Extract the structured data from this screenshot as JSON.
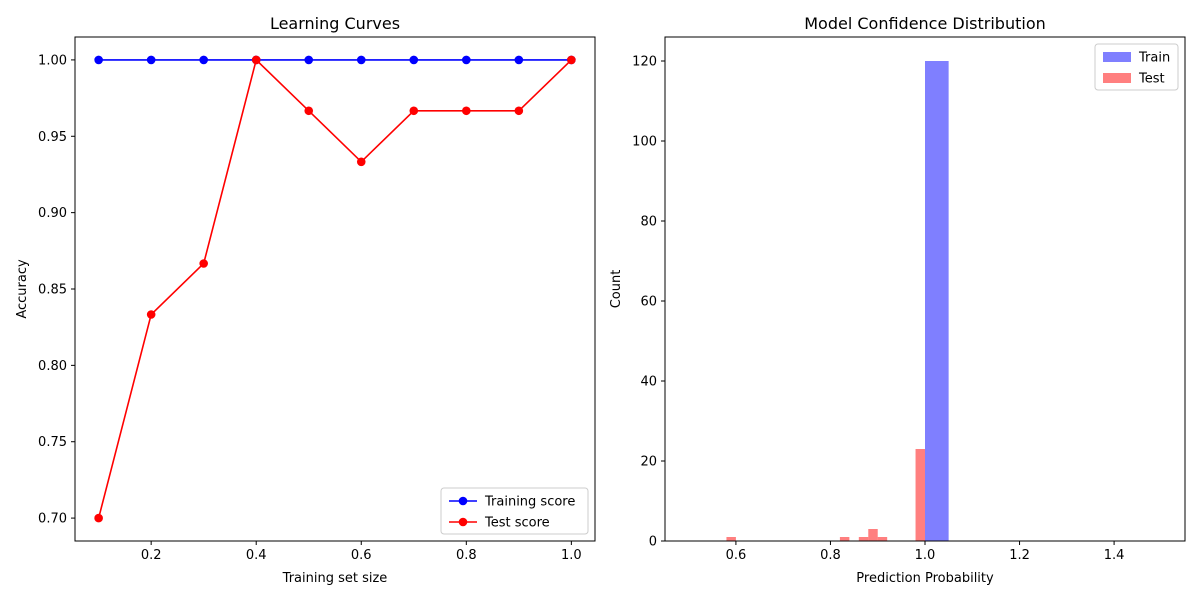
{
  "chart_data": [
    {
      "type": "line",
      "title": "Learning Curves",
      "xlabel": "Training set size",
      "ylabel": "Accuracy",
      "xlim": [
        0.055,
        1.045
      ],
      "ylim": [
        0.685,
        1.015
      ],
      "xticks": [
        0.2,
        0.4,
        0.6,
        0.8,
        1.0
      ],
      "xtick_labels": [
        "0.2",
        "0.4",
        "0.6",
        "0.8",
        "1.0"
      ],
      "yticks": [
        0.7,
        0.75,
        0.8,
        0.85,
        0.9,
        0.95,
        1.0
      ],
      "ytick_labels": [
        "0.70",
        "0.75",
        "0.80",
        "0.85",
        "0.90",
        "0.95",
        "1.00"
      ],
      "legend_position": "lower-right",
      "grid": false,
      "x": [
        0.1,
        0.2,
        0.3,
        0.4,
        0.5,
        0.6,
        0.7,
        0.8,
        0.9,
        1.0
      ],
      "series": [
        {
          "name": "Training score",
          "color": "#0000ff",
          "marker": "circle",
          "values": [
            1.0,
            1.0,
            1.0,
            1.0,
            1.0,
            1.0,
            1.0,
            1.0,
            1.0,
            1.0
          ]
        },
        {
          "name": "Test score",
          "color": "#ff0000",
          "marker": "circle",
          "values": [
            0.7,
            0.8333,
            0.8667,
            1.0,
            0.9667,
            0.9333,
            0.9667,
            0.9667,
            0.9667,
            1.0
          ]
        }
      ]
    },
    {
      "type": "bar",
      "title": "Model Confidence Distribution",
      "xlabel": "Prediction Probability",
      "ylabel": "Count",
      "xlim": [
        0.45,
        1.55
      ],
      "ylim": [
        0,
        126
      ],
      "xticks": [
        0.6,
        0.8,
        1.0,
        1.2,
        1.4
      ],
      "xtick_labels": [
        "0.6",
        "0.8",
        "1.0",
        "1.2",
        "1.4"
      ],
      "yticks": [
        0,
        20,
        40,
        60,
        80,
        100,
        120
      ],
      "ytick_labels": [
        "0",
        "20",
        "40",
        "60",
        "80",
        "100",
        "120"
      ],
      "legend_position": "upper-right",
      "grid": false,
      "series": [
        {
          "name": "Train",
          "color": "#0000ff",
          "opacity": 0.5,
          "bins": [
            {
              "x0": 1.0,
              "x1": 1.05,
              "count": 120
            }
          ]
        },
        {
          "name": "Test",
          "color": "#ff0000",
          "opacity": 0.5,
          "bins": [
            {
              "x0": 0.58,
              "x1": 0.6,
              "count": 1
            },
            {
              "x0": 0.82,
              "x1": 0.84,
              "count": 1
            },
            {
              "x0": 0.86,
              "x1": 0.88,
              "count": 1
            },
            {
              "x0": 0.88,
              "x1": 0.9,
              "count": 3
            },
            {
              "x0": 0.9,
              "x1": 0.92,
              "count": 1
            },
            {
              "x0": 0.98,
              "x1": 1.0,
              "count": 23
            }
          ]
        }
      ]
    }
  ]
}
